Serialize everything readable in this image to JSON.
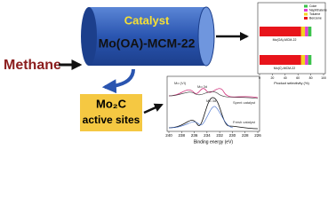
{
  "input": "Methane",
  "catalyst": {
    "label": "Catalyst",
    "name": "Mo(OA)-MCM-22"
  },
  "active_sites": [
    "Mo₂C",
    "active sites"
  ],
  "xps": {
    "spent": "Spent catalyst",
    "fresh": "Fresh catalyst",
    "peak_labels": [
      "Mo (VI)",
      "Mo 3d",
      "Mo 3d"
    ],
    "xlabel": "Binding energy (eV)",
    "xlim": [
      240,
      226
    ],
    "xticks": [
      240,
      238,
      236,
      234,
      232,
      230,
      228,
      226
    ]
  },
  "chart_data": {
    "type": "bar",
    "orientation": "horizontal",
    "categories": [
      "Mo(OA)-MCM-22",
      "Mo(C)-MCM-22"
    ],
    "series": [
      {
        "name": "Benzene",
        "color": "#e8141b",
        "values": [
          65,
          65
        ]
      },
      {
        "name": "Toluene",
        "color": "#f4d21f",
        "values": [
          6,
          6
        ]
      },
      {
        "name": "Naphthalene",
        "color": "#e23ad4",
        "values": [
          5,
          5
        ]
      },
      {
        "name": "Coke",
        "color": "#39c24a",
        "values": [
          5,
          5
        ]
      }
    ],
    "legend": [
      "Coke",
      "Naphthalene",
      "Toluene",
      "Benzene"
    ],
    "xlabel": "Product selectivity (%)",
    "xlim": [
      0,
      100
    ],
    "xticks": [
      0,
      20,
      40,
      60,
      80,
      100
    ]
  }
}
